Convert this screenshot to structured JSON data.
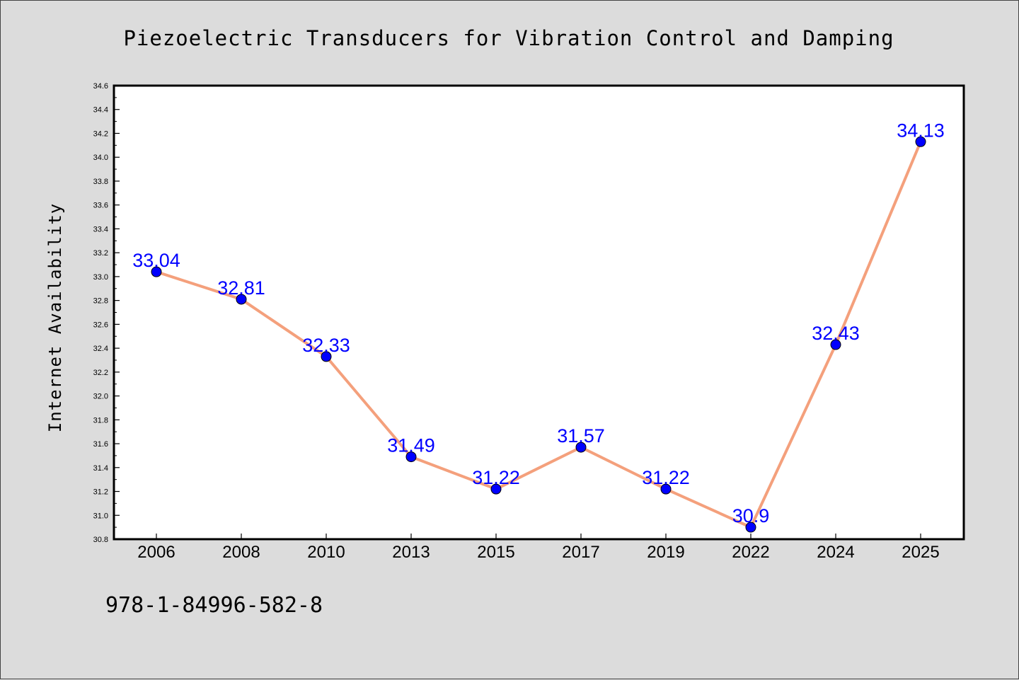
{
  "chart_data": {
    "type": "line",
    "title": "Piezoelectric Transducers for Vibration Control and Damping",
    "ylabel": "Internet Availability",
    "xlabel": "",
    "categories": [
      "2006",
      "2008",
      "2010",
      "2013",
      "2015",
      "2017",
      "2019",
      "2022",
      "2024",
      "2025"
    ],
    "series": [
      {
        "values": [
          33.04,
          32.81,
          32.33,
          31.49,
          31.22,
          31.57,
          31.22,
          30.9,
          32.43,
          34.13
        ],
        "data_labels": [
          "33.04",
          "32.81",
          "32.33",
          "31.49",
          "31.22",
          "31.57",
          "31.22",
          "30.9",
          "32.43",
          "34.13"
        ]
      }
    ],
    "ylim": [
      30.8,
      34.6
    ],
    "yticks": [
      "30.8",
      "31.0",
      "31.2",
      "31.4",
      "31.6",
      "31.8",
      "32.0",
      "32.2",
      "32.4",
      "32.6",
      "32.8",
      "33.0",
      "33.2",
      "33.4",
      "33.6",
      "33.8",
      "34.0",
      "34.2",
      "34.4",
      "34.6"
    ],
    "grid": false,
    "colors": {
      "line": "#f4a07c",
      "marker": "#0000ff",
      "label": "#0000ff"
    }
  },
  "footer": {
    "isbn": "978-1-84996-582-8"
  }
}
